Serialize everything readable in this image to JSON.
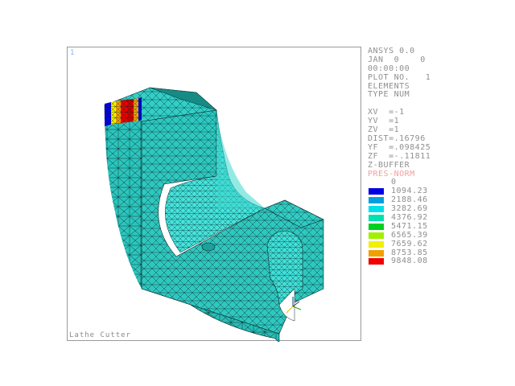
{
  "window_number": "1",
  "footer_title": "Lathe Cutter",
  "info_lines": [
    "ANSYS 0.0",
    "JAN  0    0",
    "00:00:00",
    "PLOT NO.   1",
    "ELEMENTS",
    "TYPE NUM"
  ],
  "view_lines": [
    "XV  =-1",
    "YV  =1",
    "ZV  =1",
    "DIST=.16796",
    "YF  =.098425",
    "ZF  =-.11811",
    "Z-BUFFER"
  ],
  "contour_title": "PRES-NORM",
  "contour_labels": [
    "0",
    "1094.23",
    "2188.46",
    "3282.69",
    "4376.92",
    "5471.15",
    "6565.39",
    "7659.62",
    "8753.85",
    "9848.08"
  ],
  "contour_colors": [
    "#ffffff",
    "#0000e6",
    "#00a0e0",
    "#00e0e8",
    "#00e0b0",
    "#00d020",
    "#a0f000",
    "#f0f000",
    "#f0a000",
    "#f00000"
  ],
  "colors": {
    "mesh_fill": "#2ec8c0",
    "mesh_fill_light": "#40e0d8",
    "mesh_fill_dark": "#1aa49e",
    "mesh_lines": "#0a2020"
  }
}
